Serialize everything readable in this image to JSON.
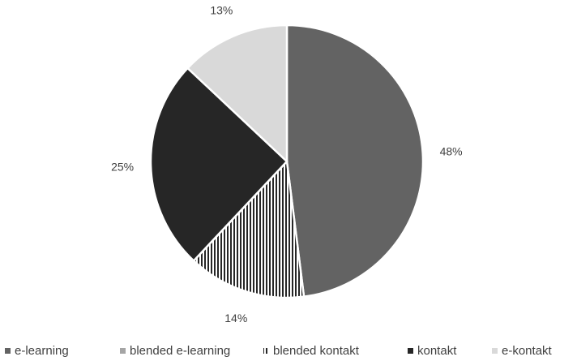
{
  "chart_data": {
    "type": "pie",
    "title": "",
    "slices": [
      {
        "label": "e-learning",
        "value": 48,
        "data_label": "48%",
        "color": "#636363",
        "pattern": "solid"
      },
      {
        "label": "blended e-learning",
        "value": 0,
        "data_label": "",
        "color": "#a5a5a5",
        "pattern": "solid"
      },
      {
        "label": "blended kontakt",
        "value": 14,
        "data_label": "14%",
        "color": "#262626",
        "pattern": "vertical-stripes"
      },
      {
        "label": "kontakt",
        "value": 25,
        "data_label": "25%",
        "color": "#262626",
        "pattern": "solid"
      },
      {
        "label": "e-kontakt",
        "value": 13,
        "data_label": "13%",
        "color": "#d9d9d9",
        "pattern": "solid"
      }
    ],
    "start_angle": "12 o'clock",
    "direction": "clockwise",
    "legend_position": "bottom"
  }
}
